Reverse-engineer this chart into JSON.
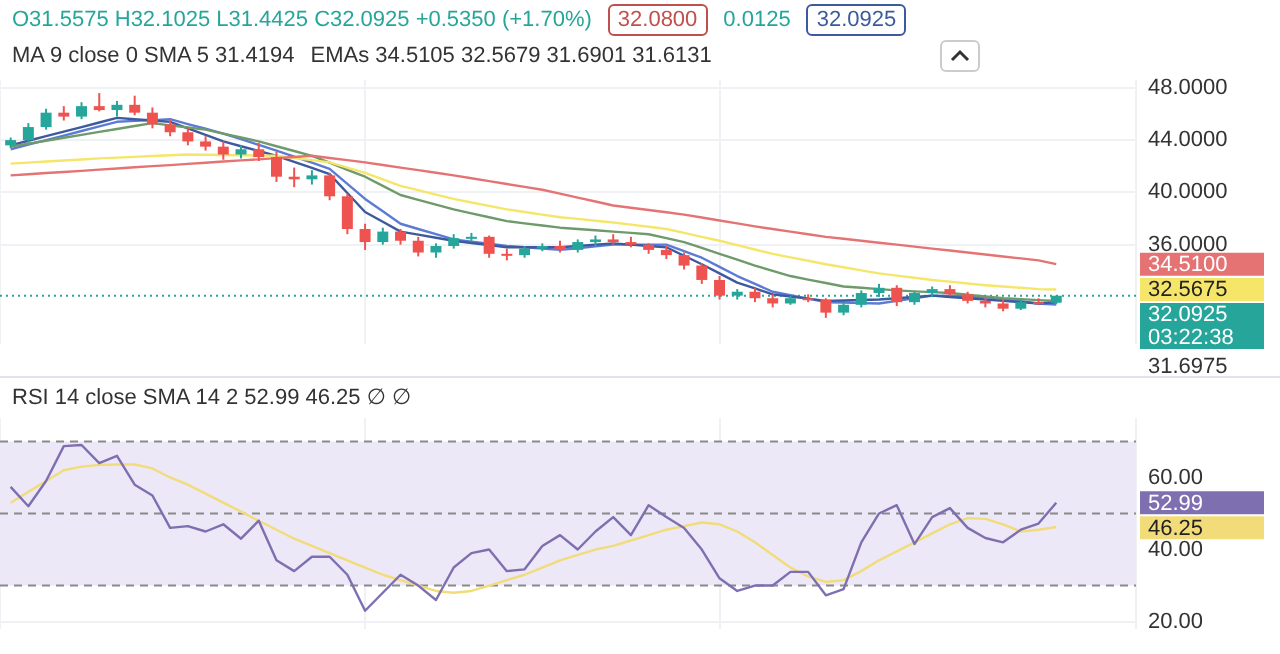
{
  "chart_data": [
    {
      "type": "candlestick",
      "categories": [
        null,
        null,
        null,
        null,
        null,
        null,
        null,
        null,
        null,
        null,
        null,
        null,
        null,
        null,
        null,
        null,
        null,
        null,
        null,
        null,
        null,
        null,
        null,
        null,
        null,
        null,
        null,
        null,
        null,
        null,
        null,
        null,
        null,
        null,
        null,
        null,
        null,
        null,
        null,
        null,
        null,
        null,
        null,
        null,
        null,
        null,
        null,
        null,
        null,
        null,
        null,
        null,
        null,
        null,
        null,
        null,
        null,
        null,
        null,
        null
      ],
      "ohlc": [
        [
          43.6,
          44.2,
          43.4,
          44.0
        ],
        [
          44.0,
          45.3,
          43.8,
          45.0
        ],
        [
          45.0,
          46.4,
          44.8,
          46.1
        ],
        [
          46.1,
          46.6,
          45.5,
          45.8
        ],
        [
          45.8,
          46.9,
          45.6,
          46.6
        ],
        [
          46.6,
          47.6,
          46.2,
          46.3
        ],
        [
          46.3,
          47.0,
          45.8,
          46.7
        ],
        [
          46.7,
          47.4,
          45.9,
          46.1
        ],
        [
          46.1,
          46.5,
          44.9,
          45.2
        ],
        [
          45.2,
          45.6,
          44.3,
          44.6
        ],
        [
          44.6,
          45.0,
          43.6,
          43.9
        ],
        [
          43.9,
          44.3,
          43.2,
          43.5
        ],
        [
          43.5,
          43.9,
          42.5,
          42.9
        ],
        [
          42.9,
          43.6,
          42.6,
          43.3
        ],
        [
          43.3,
          43.8,
          42.4,
          42.7
        ],
        [
          42.7,
          43.1,
          40.8,
          41.2
        ],
        [
          41.2,
          41.9,
          40.4,
          41.0
        ],
        [
          41.0,
          41.7,
          40.6,
          41.3
        ],
        [
          41.3,
          41.5,
          39.4,
          39.7
        ],
        [
          39.7,
          39.9,
          36.8,
          37.2
        ],
        [
          37.2,
          37.6,
          35.6,
          36.2
        ],
        [
          36.2,
          37.3,
          36.0,
          37.0
        ],
        [
          37.0,
          37.2,
          36.0,
          36.3
        ],
        [
          36.3,
          36.6,
          35.1,
          35.4
        ],
        [
          35.4,
          36.1,
          35.0,
          35.9
        ],
        [
          35.9,
          36.8,
          35.7,
          36.5
        ],
        [
          36.5,
          36.9,
          36.2,
          36.6
        ],
        [
          36.6,
          36.7,
          35.0,
          35.3
        ],
        [
          35.3,
          35.7,
          34.8,
          35.2
        ],
        [
          35.2,
          35.9,
          35.0,
          35.7
        ],
        [
          35.7,
          36.1,
          35.5,
          35.9
        ],
        [
          35.9,
          36.3,
          35.4,
          35.6
        ],
        [
          35.6,
          36.4,
          35.4,
          36.2
        ],
        [
          36.2,
          36.7,
          35.9,
          36.4
        ],
        [
          36.4,
          36.8,
          36.0,
          36.2
        ],
        [
          36.2,
          36.6,
          35.8,
          36.0
        ],
        [
          36.0,
          36.1,
          35.3,
          35.6
        ],
        [
          35.6,
          35.9,
          34.9,
          35.2
        ],
        [
          35.2,
          35.4,
          34.1,
          34.4
        ],
        [
          34.4,
          34.6,
          33.0,
          33.3
        ],
        [
          33.3,
          33.6,
          31.8,
          32.1
        ],
        [
          32.1,
          32.6,
          31.8,
          32.4
        ],
        [
          32.4,
          32.7,
          31.6,
          31.9
        ],
        [
          31.9,
          32.2,
          31.2,
          31.5
        ],
        [
          31.5,
          32.1,
          31.4,
          31.9
        ],
        [
          31.9,
          32.2,
          31.6,
          31.8
        ],
        [
          31.8,
          31.9,
          30.4,
          30.8
        ],
        [
          30.8,
          31.6,
          30.6,
          31.4
        ],
        [
          31.4,
          32.5,
          31.2,
          32.3
        ],
        [
          32.3,
          33.0,
          32.0,
          32.7
        ],
        [
          32.7,
          32.9,
          31.3,
          31.6
        ],
        [
          31.6,
          32.4,
          31.4,
          32.3
        ],
        [
          32.3,
          32.8,
          32.0,
          32.6
        ],
        [
          32.6,
          32.9,
          32.1,
          32.2
        ],
        [
          32.2,
          32.4,
          31.5,
          31.7
        ],
        [
          31.7,
          31.9,
          31.2,
          31.5
        ],
        [
          31.5,
          31.8,
          30.9,
          31.1
        ],
        [
          31.1,
          31.8,
          31.0,
          31.6
        ],
        [
          31.6,
          31.9,
          31.4,
          31.5575
        ],
        [
          31.5575,
          32.1025,
          31.4425,
          32.0925
        ]
      ],
      "series": [
        {
          "type": "line",
          "color": "#e57373",
          "values": [
            41.3,
            41.39,
            41.48,
            41.56,
            41.65,
            41.74,
            41.83,
            41.92,
            42.01,
            42.09,
            42.18,
            42.27,
            42.36,
            42.45,
            42.53,
            42.62,
            42.71,
            42.8,
            42.63,
            42.47,
            42.3,
            42.1,
            41.9,
            41.7,
            41.5,
            41.3,
            41.08,
            40.86,
            40.64,
            40.42,
            40.2,
            39.9,
            39.6,
            39.3,
            39.0,
            38.83,
            38.65,
            38.48,
            38.3,
            38.08,
            37.85,
            37.63,
            37.4,
            37.2,
            37.0,
            36.8,
            36.6,
            36.45,
            36.3,
            36.15,
            36.0,
            35.85,
            35.7,
            35.55,
            35.4,
            35.25,
            35.1,
            34.95,
            34.8,
            34.51
          ]
        },
        {
          "type": "line",
          "color": "#f5e66a",
          "values": [
            42.2,
            42.28,
            42.36,
            42.44,
            42.52,
            42.6,
            42.66,
            42.72,
            42.78,
            42.84,
            42.9,
            42.88,
            42.86,
            42.84,
            42.82,
            42.8,
            42.63,
            42.47,
            42.3,
            41.9,
            41.5,
            41.0,
            40.5,
            40.17,
            39.83,
            39.5,
            39.23,
            38.97,
            38.7,
            38.5,
            38.3,
            38.1,
            37.97,
            37.83,
            37.7,
            37.53,
            37.37,
            37.2,
            36.9,
            36.6,
            36.3,
            35.97,
            35.63,
            35.3,
            35.03,
            34.77,
            34.5,
            34.27,
            34.03,
            33.8,
            33.63,
            33.47,
            33.3,
            33.17,
            33.03,
            32.9,
            32.8,
            32.7,
            32.6,
            32.5679
          ]
        },
        {
          "type": "line",
          "color": "#6f9a6a",
          "values": [
            43.5,
            43.73,
            43.95,
            44.18,
            44.4,
            44.63,
            44.85,
            45.08,
            45.3,
            45.13,
            44.97,
            44.8,
            44.5,
            44.2,
            43.9,
            43.53,
            43.17,
            42.8,
            42.27,
            41.73,
            41.2,
            40.5,
            39.8,
            39.43,
            39.07,
            38.7,
            38.4,
            38.1,
            37.8,
            37.63,
            37.47,
            37.3,
            37.2,
            37.1,
            37.0,
            36.9,
            36.8,
            36.5,
            36.2,
            35.75,
            35.3,
            34.85,
            34.4,
            34.0,
            33.6,
            33.33,
            33.07,
            32.8,
            32.7,
            32.6,
            32.5,
            32.43,
            32.37,
            32.3,
            32.17,
            32.03,
            31.9,
            31.83,
            31.76,
            31.6901
          ]
        },
        {
          "type": "line",
          "color": "#3d5a9e",
          "values": [
            43.6,
            43.95,
            44.3,
            44.65,
            45.0,
            45.35,
            45.7,
            45.6,
            45.5,
            45.4,
            44.9,
            44.4,
            43.9,
            43.53,
            43.17,
            42.8,
            42.33,
            41.87,
            41.4,
            39.95,
            38.5,
            37.75,
            37.0,
            36.77,
            36.53,
            36.3,
            36.13,
            35.97,
            35.8,
            35.8,
            35.8,
            35.8,
            35.9,
            36.0,
            36.1,
            36.0,
            35.9,
            35.8,
            35.15,
            34.5,
            33.8,
            33.1,
            32.65,
            32.2,
            32.03,
            31.87,
            31.7,
            31.73,
            31.77,
            31.8,
            31.9,
            32.0,
            32.1,
            32.0,
            31.9,
            31.8,
            31.7,
            31.6,
            31.5,
            31.6131
          ]
        },
        {
          "type": "line",
          "color": "#5b7bd5",
          "values": [
            43.3,
            43.65,
            44.0,
            44.35,
            44.7,
            45.05,
            45.4,
            45.47,
            45.53,
            45.6,
            45.23,
            44.87,
            44.5,
            44.07,
            43.63,
            43.2,
            42.73,
            42.27,
            41.8,
            40.65,
            39.5,
            38.55,
            37.6,
            37.2,
            36.8,
            36.4,
            36.23,
            36.07,
            35.9,
            35.8,
            35.7,
            35.6,
            35.73,
            35.87,
            36.0,
            36.0,
            36.0,
            36.0,
            35.5,
            35.0,
            34.3,
            33.6,
            33.0,
            32.4,
            32.13,
            31.87,
            31.6,
            31.57,
            31.53,
            31.5,
            31.7,
            31.9,
            32.1,
            32.07,
            32.03,
            32.0,
            31.83,
            31.67,
            31.5,
            31.4194
          ]
        }
      ],
      "ylim": [
        28.4,
        48.6
      ],
      "yticks": [
        {
          "value": 36,
          "label": "36.0000"
        },
        {
          "value": 40,
          "label": "40.0000"
        },
        {
          "value": 44,
          "label": "44.0000"
        },
        {
          "value": 48,
          "label": "48.0000"
        }
      ],
      "ref_lines": [
        {
          "axis": "y",
          "value": 32.0925,
          "label": "32.0925",
          "color": "#26a69a",
          "line_style": "dotted"
        }
      ],
      "annotations": [
        "O31.5575 H32.1025 L31.4425 C32.0925 +0.5350 (+1.70%)",
        "32.0800",
        "0.0125",
        "32.0925",
        "MA 9 close 0 SMA 5 31.4194",
        "EMAs 34.5105 32.5679 31.6901 31.6131",
        "34.5100",
        "32.5675",
        "03:22:38",
        "31.6975"
      ],
      "grid": true,
      "marker": "none",
      "line_style": "solid",
      "tick_labels": "y"
    },
    {
      "type": "line",
      "categories": [
        null,
        null,
        null,
        null,
        null,
        null,
        null,
        null,
        null,
        null,
        null,
        null,
        null,
        null,
        null,
        null,
        null,
        null,
        null,
        null,
        null,
        null,
        null,
        null,
        null,
        null,
        null,
        null,
        null,
        null,
        null,
        null,
        null,
        null,
        null,
        null,
        null,
        null,
        null,
        null,
        null,
        null,
        null,
        null,
        null,
        null,
        null,
        null,
        null,
        null,
        null,
        null,
        null,
        null,
        null,
        null,
        null,
        null,
        null,
        null
      ],
      "series": [
        {
          "color": "#7e6fb0",
          "values": [
            57.4,
            52,
            59,
            68.7,
            69,
            64,
            66,
            58,
            55,
            46,
            46.5,
            45,
            47,
            43,
            48,
            37,
            34,
            38,
            38,
            33,
            23,
            28,
            33,
            30,
            26,
            35,
            39,
            40,
            34,
            34.5,
            41,
            44,
            40,
            45,
            49,
            44,
            52.3,
            49,
            46,
            40,
            32,
            28.5,
            30,
            30,
            33.8,
            33.8,
            27.3,
            29,
            42,
            50,
            52.3,
            41.5,
            49,
            51.5,
            46,
            43.2,
            42,
            45.5,
            47.2,
            52.99
          ]
        },
        {
          "color": "#f2dc7a",
          "values": [
            53,
            56,
            59,
            62,
            63,
            63.5,
            63.6,
            63.6,
            62.5,
            60,
            58,
            55.5,
            53,
            50.5,
            48,
            45.5,
            43,
            41,
            39,
            37,
            35,
            33,
            31.5,
            30,
            28.5,
            28,
            28.5,
            30,
            31.5,
            33,
            35,
            37,
            38.5,
            40,
            41,
            42.5,
            44,
            45.5,
            46.5,
            47.5,
            47,
            45,
            42,
            38.5,
            35,
            32.5,
            31,
            31.5,
            34,
            37,
            39.5,
            42,
            44.5,
            47,
            48.7,
            48.5,
            47,
            45,
            45.5,
            46.25
          ]
        }
      ],
      "ylim": [
        18,
        76.5
      ],
      "yticks": [
        {
          "value": 20,
          "label": "20.00"
        },
        {
          "value": 40,
          "label": "40.00"
        },
        {
          "value": 60,
          "label": "60.00"
        }
      ],
      "bands": [
        {
          "axis": "y",
          "from": 30,
          "to": 70,
          "color": "#ece8f7"
        }
      ],
      "ref_lines": [
        {
          "axis": "y",
          "value": 70,
          "color": "#8a8a8a",
          "line_style": "dashed"
        },
        {
          "axis": "y",
          "value": 50,
          "color": "#8a8a8a",
          "line_style": "dashed"
        },
        {
          "axis": "y",
          "value": 30,
          "color": "#8a8a8a",
          "line_style": "dashed"
        }
      ],
      "annotations": [
        "RSI 14 close SMA 14 2 52.99 46.25 ∅ ∅",
        "52.99",
        "46.25"
      ],
      "grid": true,
      "marker": "none",
      "line_style": "solid",
      "tick_labels": "y"
    }
  ]
}
